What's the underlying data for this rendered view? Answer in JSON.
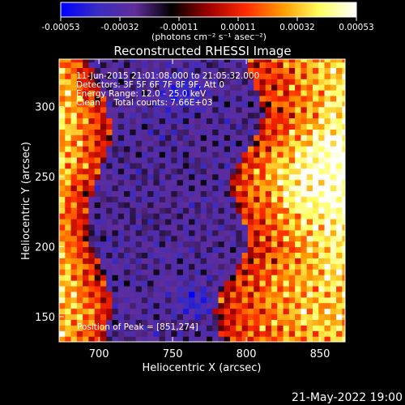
{
  "chart_data": {
    "type": "heatmap",
    "title": "Reconstructed RHESSI Image",
    "xlabel": "Heliocentric X (arcsec)",
    "ylabel": "Heliocentric Y (arcsec)",
    "xlim": [
      673,
      867
    ],
    "ylim": [
      132,
      334
    ],
    "x_ticks": [
      700,
      750,
      800,
      850
    ],
    "y_ticks": [
      150,
      200,
      250,
      300
    ],
    "colorbar": {
      "range": [
        -0.00053,
        0.00053
      ],
      "ticks": [
        "-0.00053",
        "-0.00032",
        "-0.00011",
        "0.00011",
        "0.00032",
        "0.00053"
      ],
      "units": "(photons cm⁻² s⁻¹ asec⁻²)",
      "colormap": [
        "#0000ff",
        "#3a2cc0",
        "#602d9b",
        "#000000",
        "#9e0000",
        "#ff2a00",
        "#ff9a00",
        "#ffff60",
        "#ffffff"
      ]
    },
    "annotations": [
      "11-Jun-2015 21:01:08.000 to 21:05:32.000",
      "Detectors: 3F 5F 6F 7F 8F 9F, Att 0",
      "Energy Range: 12.0 - 25.0 keV",
      "Clean     Total counts: 7.66E+03"
    ],
    "peak_label": "Position of Peak = [851,274]",
    "peak": [
      851,
      274
    ],
    "footer_date": "21-May-2022 19:00"
  }
}
